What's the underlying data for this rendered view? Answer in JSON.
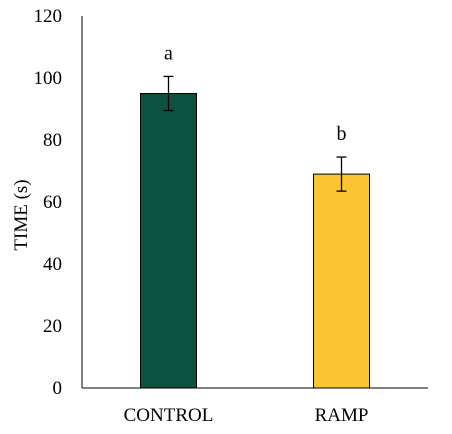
{
  "chart_data": {
    "type": "bar",
    "title": "",
    "xlabel": "",
    "ylabel": "TIME (s)",
    "ylim": [
      0,
      120
    ],
    "yticks": [
      0,
      20,
      40,
      60,
      80,
      100,
      120
    ],
    "categories": [
      "CONTROL",
      "RAMP"
    ],
    "values": [
      95,
      69
    ],
    "errors": [
      5.5,
      5.5
    ],
    "significance": [
      "a",
      "b"
    ],
    "colors": [
      "#0d5240",
      "#fcc430"
    ],
    "grid": false,
    "legend": "none"
  }
}
